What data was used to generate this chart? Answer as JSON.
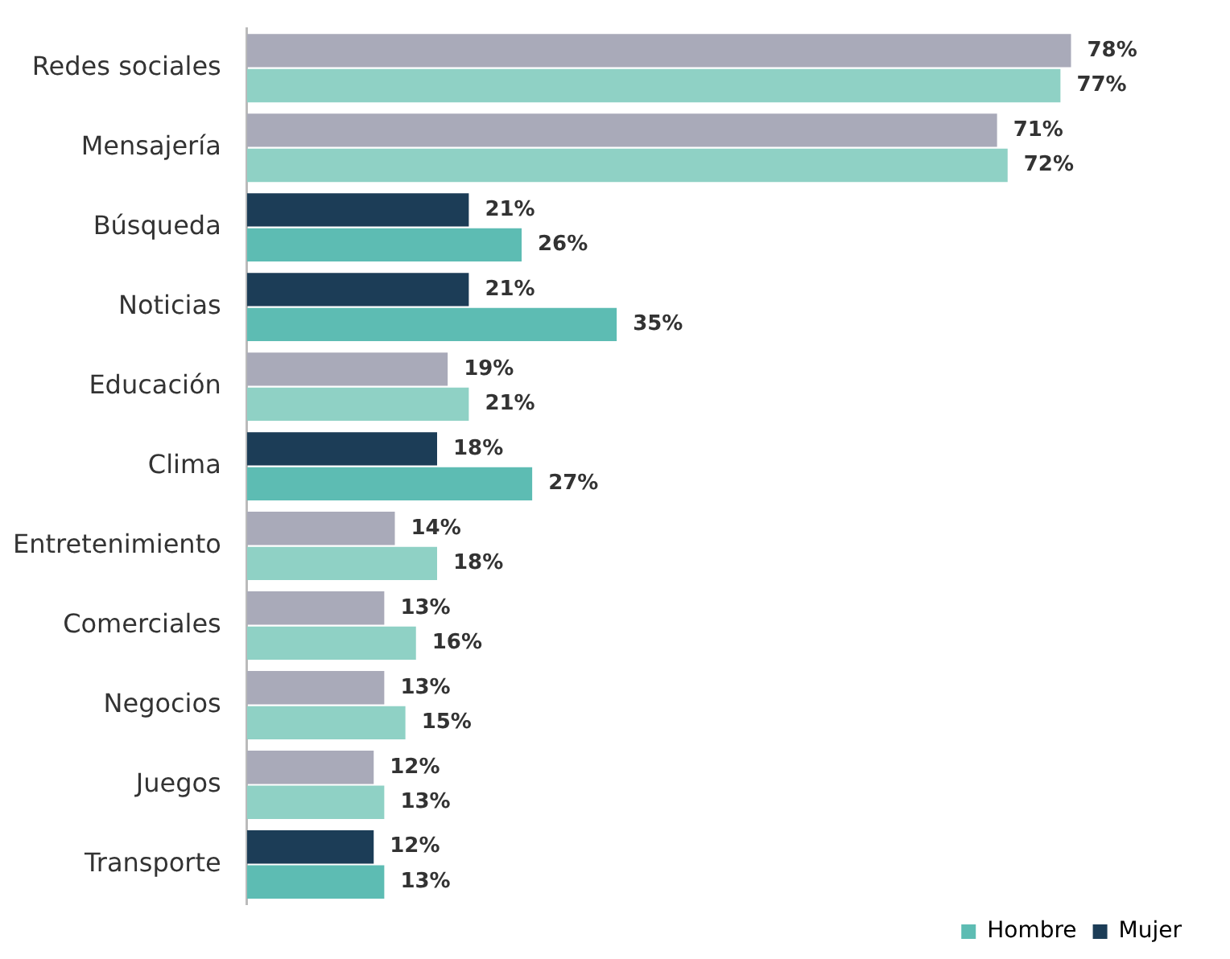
{
  "chart_data": {
    "type": "bar",
    "orientation": "horizontal",
    "categories": [
      "Redes sociales",
      "Mensajería",
      "Búsqueda",
      "Noticias",
      "Educación",
      "Clima",
      "Entretenimiento",
      "Comerciales",
      "Negocios",
      "Juegos",
      "Transporte"
    ],
    "series": [
      {
        "name": "Mujer",
        "color": "#1c3d57",
        "values": [
          78,
          71,
          21,
          21,
          19,
          18,
          14,
          13,
          13,
          12,
          12
        ],
        "colors": [
          "#a9aab9",
          "#a9aab9",
          "#1c3d57",
          "#1c3d57",
          "#a9aab9",
          "#1c3d57",
          "#a9aab9",
          "#a9aab9",
          "#a9aab9",
          "#a9aab9",
          "#1c3d57"
        ],
        "value_labels": [
          "78%",
          "71%",
          "21%",
          "21%",
          "19%",
          "18%",
          "14%",
          "13%",
          "13%",
          "12%",
          "12%"
        ]
      },
      {
        "name": "Hombre",
        "color": "#5dbcb3",
        "values": [
          77,
          72,
          26,
          35,
          21,
          27,
          18,
          16,
          15,
          13,
          13
        ],
        "colors": [
          "#8fd1c5",
          "#8fd1c5",
          "#5dbcb3",
          "#5dbcb3",
          "#8fd1c5",
          "#5dbcb3",
          "#8fd1c5",
          "#8fd1c5",
          "#8fd1c5",
          "#8fd1c5",
          "#5dbcb3"
        ],
        "value_labels": [
          "77%",
          "72%",
          "26%",
          "35%",
          "21%",
          "27%",
          "18%",
          "16%",
          "15%",
          "13%",
          "13%"
        ]
      }
    ],
    "tick_labels": "y",
    "legend": "bottom right"
  }
}
